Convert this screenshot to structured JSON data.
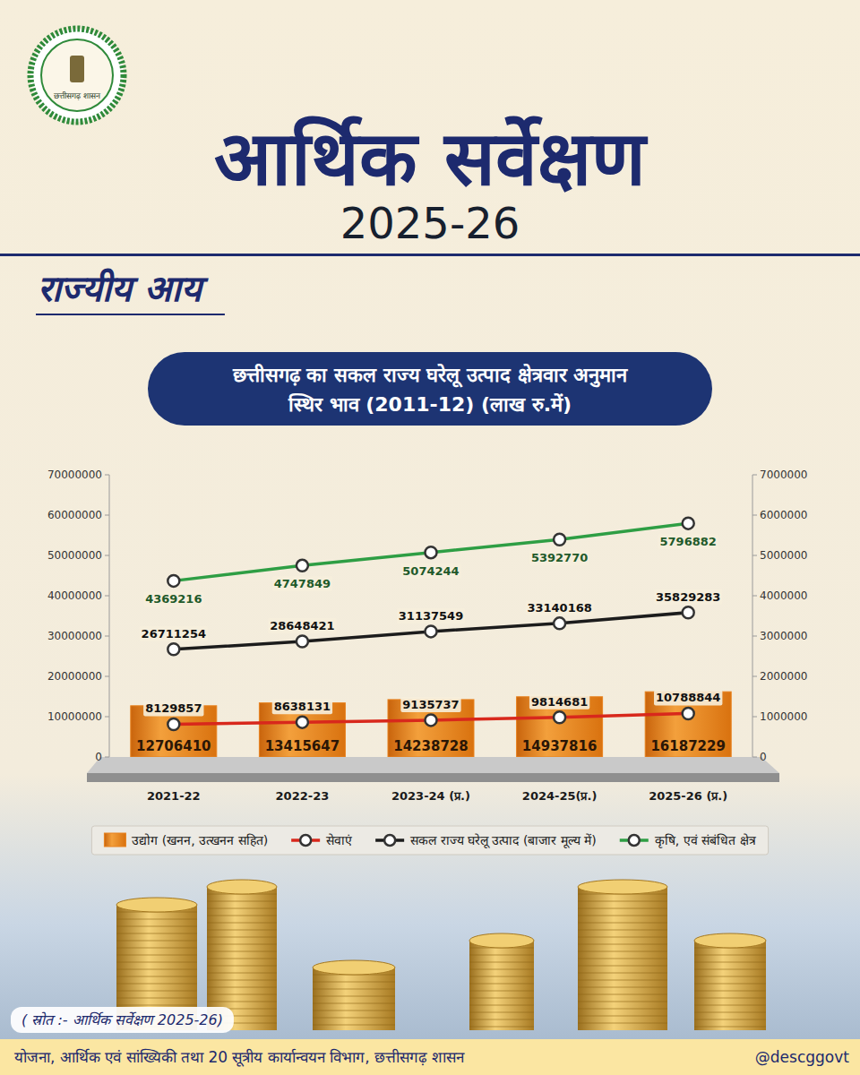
{
  "page": {
    "logo_text": "छत्तीसगढ़ शासन",
    "title": "आर्थिक सर्वेक्षण",
    "year": "2025-26",
    "section": "राज्यीय आय",
    "source": "( स्रोत :- आर्थिक सर्वेक्षण 2025-26)",
    "footer": "योजना, आर्थिक एवं सांख्यिकी तथा 20 सूत्रीय कार्यान्वयन विभाग, छत्तीसगढ़ शासन",
    "handle": "@descggovt"
  },
  "chart_data": {
    "type": "bar",
    "title": "छत्तीसगढ़ का सकल राज्य घरेलू उत्पाद क्षेत्रवार अनुमान",
    "subtitle": "स्थिर भाव (2011-12) (लाख रु.में)",
    "categories": [
      "2021-22",
      "2022-23",
      "2023-24 (प्र.)",
      "2024-25(प्र.)",
      "2025-26 (प्र.)"
    ],
    "series": [
      {
        "name": "उद्योग (खनन, उत्खनन सहित)",
        "type": "bar",
        "color": "#e8821e",
        "values": [
          12706410,
          13415647,
          14238728,
          14937816,
          16187229
        ]
      },
      {
        "name": "सेवाएं",
        "type": "line",
        "color": "#d8281c",
        "marker": "circle",
        "values": [
          8129857,
          8638131,
          9135737,
          9814681,
          10788844
        ]
      },
      {
        "name": "सकल राज्य घरेलू उत्पाद (बाजार मूल्य में)",
        "type": "line",
        "color": "#1c1c1c",
        "marker": "circle",
        "values": [
          26711254,
          28648421,
          31137549,
          33140168,
          35829283
        ]
      },
      {
        "name": "कृषि, एवं संबंधित क्षेत्र",
        "type": "line",
        "color": "#2e9e44",
        "marker": "circle",
        "axis": "y2",
        "values": [
          4369216,
          4747849,
          5074244,
          5392770,
          5796882
        ]
      }
    ],
    "ylim": [
      0,
      70000000
    ],
    "yticks": [
      0,
      10000000,
      20000000,
      30000000,
      40000000,
      50000000,
      60000000,
      70000000
    ],
    "y2lim": [
      0,
      7000000
    ],
    "y2ticks": [
      0,
      1000000,
      2000000,
      3000000,
      4000000,
      5000000,
      6000000,
      7000000
    ],
    "grid": false,
    "legend": "bottom",
    "data_labels": true
  }
}
